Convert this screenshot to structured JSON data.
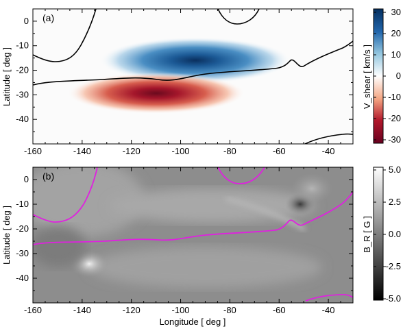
{
  "chart_data": [
    {
      "type": "heatmap",
      "panel_label": "(a)",
      "xlabel": "",
      "ylabel": "Latitude  [ deg ]",
      "xlim": [
        -160,
        -30
      ],
      "ylim": [
        -50,
        5
      ],
      "xticks": [
        -160,
        -140,
        -120,
        -100,
        -80,
        -60,
        -40
      ],
      "yticks": [
        0,
        -10,
        -20,
        -30,
        -40
      ],
      "colorbar": {
        "label": "V_shear  [ km/s ]",
        "min": -30,
        "max": 30,
        "ticks": [
          30,
          20,
          10,
          0,
          -10,
          -20,
          -30
        ],
        "colormap": "red-white-blue",
        "colors": {
          "neg": "#67001f",
          "mid": "#ffffff",
          "pos": "#053061"
        }
      },
      "features": [
        {
          "sign": "positive",
          "center_lon": -85,
          "center_lat": -17,
          "peak": 30
        },
        {
          "sign": "negative",
          "center_lon": -105,
          "center_lat": -29,
          "peak": -30
        }
      ],
      "contour_color": "#000000"
    },
    {
      "type": "heatmap",
      "panel_label": "(b)",
      "xlabel": "Longitude  [ deg ]",
      "ylabel": "Latitude  [ deg ]",
      "xlim": [
        -160,
        -30
      ],
      "ylim": [
        -50,
        5
      ],
      "xticks": [
        -160,
        -140,
        -120,
        -100,
        -80,
        -60,
        -40
      ],
      "yticks": [
        0,
        -10,
        -20,
        -30,
        -40
      ],
      "colorbar": {
        "label": "B_R  [ G ]",
        "min": -5.0,
        "max": 5.0,
        "ticks": [
          "5.0",
          "2.5",
          "0.0",
          "-2.5",
          "-5.0"
        ],
        "colormap": "gray",
        "colors": {
          "low": "#000000",
          "high": "#ffffff"
        }
      },
      "contour_color": "#e020e0"
    }
  ],
  "tick_labels_x": [
    "-160",
    "-140",
    "-120",
    "-100",
    "-80",
    "-60",
    "-40"
  ],
  "tick_labels_y": [
    "0",
    "-10",
    "-20",
    "-30",
    "-40"
  ],
  "colorbar_a_ticks": [
    "30",
    "20",
    "10",
    "0",
    "-10",
    "-20",
    "-30"
  ],
  "colorbar_b_ticks": [
    "5.0",
    "2.5",
    "0.0",
    "-2.5",
    "-5.0"
  ]
}
